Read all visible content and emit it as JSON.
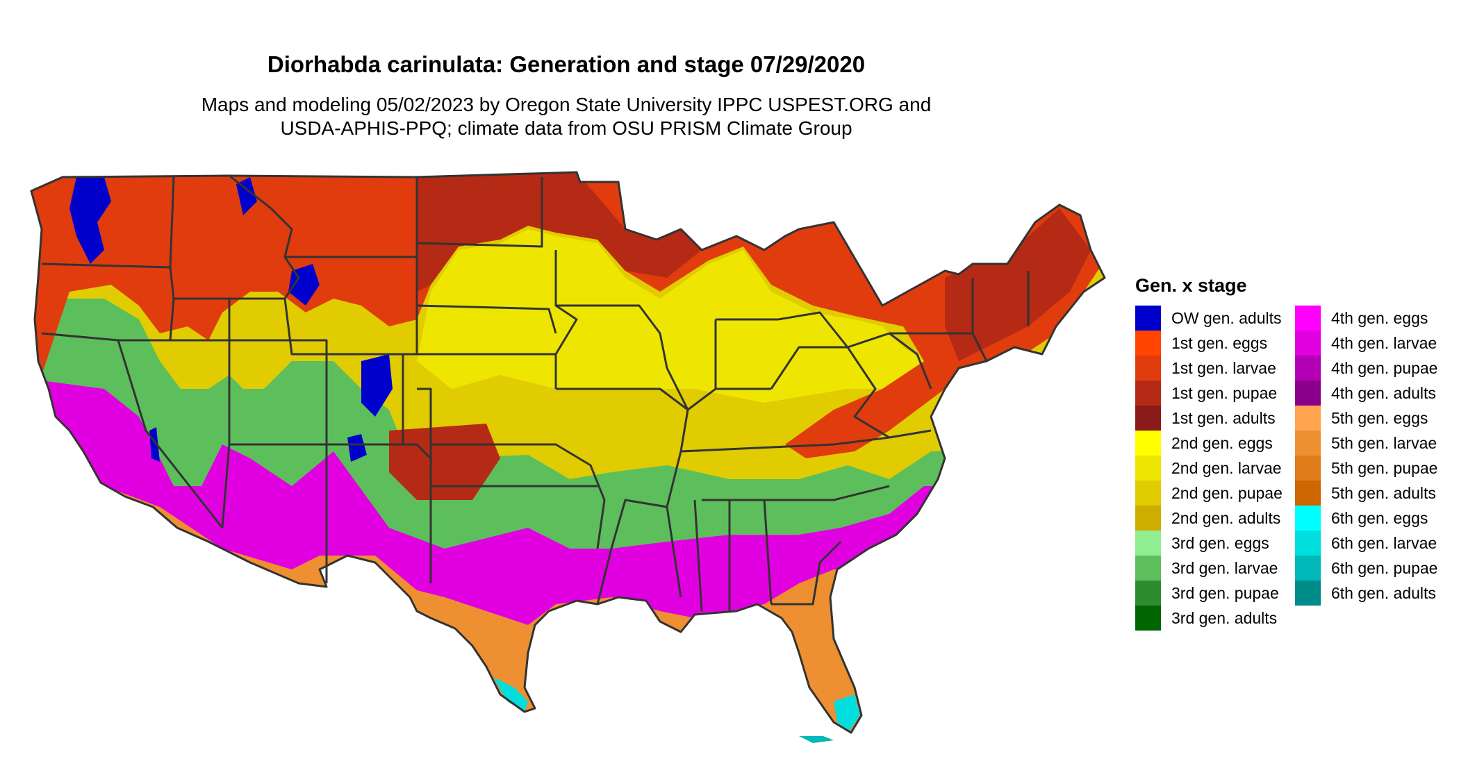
{
  "title": "Diorhabda carinulata: Generation and stage 07/29/2020",
  "subtitle_line1": "Maps and modeling 05/02/2023 by Oregon State University IPPC USPEST.ORG and",
  "subtitle_line2": "USDA-APHIS-PPQ; climate data from OSU PRISM Climate Group",
  "legend": {
    "title": "Gen. x stage",
    "items": [
      {
        "label": "OW gen. adults",
        "color": "#0000cd"
      },
      {
        "label": "1st gen. eggs",
        "color": "#ff4500"
      },
      {
        "label": "1st gen. larvae",
        "color": "#e03c0e"
      },
      {
        "label": "1st gen. pupae",
        "color": "#b52a14"
      },
      {
        "label": "1st gen. adults",
        "color": "#8b1a1a"
      },
      {
        "label": "2nd gen. eggs",
        "color": "#ffff00"
      },
      {
        "label": "2nd gen. larvae",
        "color": "#eee600"
      },
      {
        "label": "2nd gen. pupae",
        "color": "#e0cc00"
      },
      {
        "label": "2nd gen. adults",
        "color": "#cdad00"
      },
      {
        "label": "3rd gen. eggs",
        "color": "#90ee90"
      },
      {
        "label": "3rd gen. larvae",
        "color": "#5cbf5c"
      },
      {
        "label": "3rd gen. pupae",
        "color": "#2e8b2e"
      },
      {
        "label": "3rd gen. adults",
        "color": "#006400"
      },
      {
        "label": "4th gen. eggs",
        "color": "#ff00ff"
      },
      {
        "label": "4th gen. larvae",
        "color": "#e000e0"
      },
      {
        "label": "4th gen. pupae",
        "color": "#b400b4"
      },
      {
        "label": "4th gen. adults",
        "color": "#8b008b"
      },
      {
        "label": "5th gen. eggs",
        "color": "#ffa54f"
      },
      {
        "label": "5th gen. larvae",
        "color": "#ee9032"
      },
      {
        "label": "5th gen. pupae",
        "color": "#e07b1a"
      },
      {
        "label": "5th gen. adults",
        "color": "#cd6600"
      },
      {
        "label": "6th gen. eggs",
        "color": "#00ffff"
      },
      {
        "label": "6th gen. larvae",
        "color": "#00dede"
      },
      {
        "label": "6th gen. pupae",
        "color": "#00b8b8"
      },
      {
        "label": "6th gen. adults",
        "color": "#008b8b"
      }
    ]
  }
}
